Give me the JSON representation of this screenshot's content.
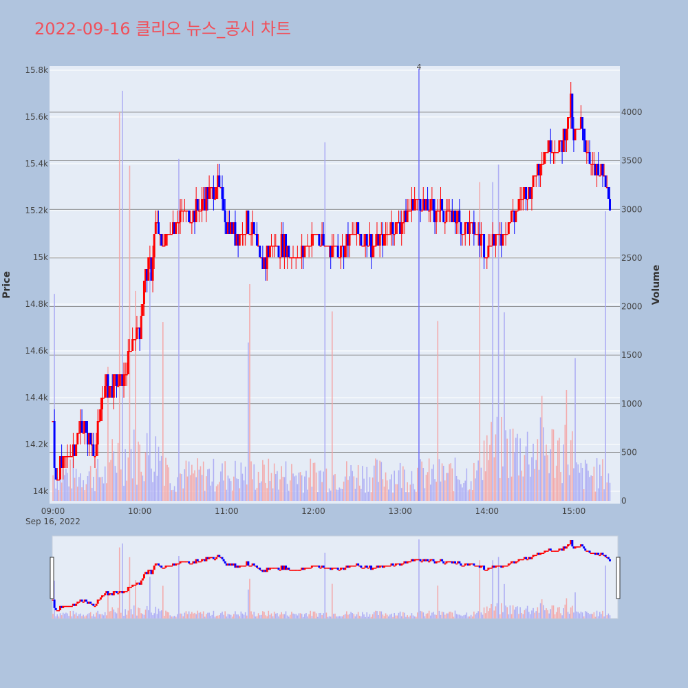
{
  "chart_data": {
    "type": "candlestick",
    "title": "2022-09-16 클리오 뉴스_공시 차트",
    "xlabel": "",
    "ylabel": "Price",
    "y2label": "Volume",
    "date_label": "Sep 16, 2022",
    "x_ticks": [
      "09:00",
      "10:00",
      "11:00",
      "12:00",
      "13:00",
      "14:00",
      "15:00"
    ],
    "y_ticks": [
      "14k",
      "14.2k",
      "14.4k",
      "14.6k",
      "14.8k",
      "15k",
      "15.2k",
      "15.4k",
      "15.6k",
      "15.8k"
    ],
    "y_tick_values": [
      14000,
      14200,
      14400,
      14600,
      14800,
      15000,
      15200,
      15400,
      15600,
      15800
    ],
    "y2_ticks": [
      "0",
      "500",
      "1000",
      "1500",
      "2000",
      "2500",
      "3000",
      "3500",
      "4000"
    ],
    "y2_tick_values": [
      0,
      500,
      1000,
      1500,
      2000,
      2500,
      3000,
      3500,
      4000
    ],
    "price_ylim": [
      13950,
      15800
    ],
    "volume_ylim": [
      0,
      4450
    ],
    "x_range": [
      "09:00",
      "15:30"
    ],
    "up_color": "#ff0000",
    "down_color": "#0000ff",
    "grid": true,
    "news_marker": {
      "time": "13:13",
      "label": "4"
    },
    "price_path": [
      [
        "09:00",
        14300
      ],
      [
        "09:01",
        14100
      ],
      [
        "09:03",
        14050
      ],
      [
        "09:05",
        14100
      ],
      [
        "09:10",
        14150
      ],
      [
        "09:15",
        14200
      ],
      [
        "09:20",
        14300
      ],
      [
        "09:25",
        14200
      ],
      [
        "09:30",
        14200
      ],
      [
        "09:35",
        14450
      ],
      [
        "09:40",
        14450
      ],
      [
        "09:45",
        14450
      ],
      [
        "09:50",
        14500
      ],
      [
        "09:55",
        14650
      ],
      [
        "10:00",
        14700
      ],
      [
        "10:03",
        14900
      ],
      [
        "10:06",
        14950
      ],
      [
        "10:08",
        14950
      ],
      [
        "10:11",
        15150
      ],
      [
        "10:15",
        15050
      ],
      [
        "10:20",
        15100
      ],
      [
        "10:30",
        15200
      ],
      [
        "10:40",
        15200
      ],
      [
        "10:50",
        15300
      ],
      [
        "10:55",
        15300
      ],
      [
        "11:00",
        15150
      ],
      [
        "11:05",
        15100
      ],
      [
        "11:10",
        15100
      ],
      [
        "11:15",
        15150
      ],
      [
        "11:20",
        15050
      ],
      [
        "11:25",
        14950
      ],
      [
        "11:30",
        15050
      ],
      [
        "11:40",
        15050
      ],
      [
        "11:50",
        15000
      ],
      [
        "12:00",
        15100
      ],
      [
        "12:10",
        15050
      ],
      [
        "12:20",
        15050
      ],
      [
        "12:30",
        15100
      ],
      [
        "12:40",
        15050
      ],
      [
        "12:50",
        15100
      ],
      [
        "13:00",
        15150
      ],
      [
        "13:10",
        15250
      ],
      [
        "13:20",
        15200
      ],
      [
        "13:30",
        15200
      ],
      [
        "13:40",
        15150
      ],
      [
        "13:50",
        15100
      ],
      [
        "14:00",
        15050
      ],
      [
        "14:10",
        15100
      ],
      [
        "14:20",
        15200
      ],
      [
        "14:30",
        15300
      ],
      [
        "14:40",
        15450
      ],
      [
        "14:45",
        15500
      ],
      [
        "14:50",
        15450
      ],
      [
        "14:55",
        15550
      ],
      [
        "14:58",
        15650
      ],
      [
        "15:00",
        15500
      ],
      [
        "15:05",
        15550
      ],
      [
        "15:10",
        15450
      ],
      [
        "15:15",
        15350
      ],
      [
        "15:20",
        15350
      ],
      [
        "15:25",
        15250
      ],
      [
        "15:28",
        15250
      ],
      [
        "15:30",
        15150
      ]
    ],
    "volume_spikes": [
      {
        "time": "09:01",
        "value": 2130,
        "dir": "down"
      },
      {
        "time": "09:38",
        "value": 1380,
        "dir": "up"
      },
      {
        "time": "09:46",
        "value": 4000,
        "dir": "up"
      },
      {
        "time": "09:48",
        "value": 4220,
        "dir": "down"
      },
      {
        "time": "09:53",
        "value": 3450,
        "dir": "up"
      },
      {
        "time": "09:57",
        "value": 2160,
        "dir": "up"
      },
      {
        "time": "10:07",
        "value": 2350,
        "dir": "down"
      },
      {
        "time": "10:16",
        "value": 1840,
        "dir": "up"
      },
      {
        "time": "10:27",
        "value": 3520,
        "dir": "down"
      },
      {
        "time": "11:15",
        "value": 1630,
        "dir": "down"
      },
      {
        "time": "11:16",
        "value": 2230,
        "dir": "up"
      },
      {
        "time": "12:08",
        "value": 3690,
        "dir": "down"
      },
      {
        "time": "12:13",
        "value": 1950,
        "dir": "up"
      },
      {
        "time": "13:13",
        "value": 4450,
        "dir": "down"
      },
      {
        "time": "13:26",
        "value": 1850,
        "dir": "up"
      },
      {
        "time": "13:55",
        "value": 3280,
        "dir": "up"
      },
      {
        "time": "14:04",
        "value": 3280,
        "dir": "down"
      },
      {
        "time": "14:08",
        "value": 3460,
        "dir": "down"
      },
      {
        "time": "14:12",
        "value": 1940,
        "dir": "down"
      },
      {
        "time": "14:38",
        "value": 1080,
        "dir": "up"
      },
      {
        "time": "14:55",
        "value": 1140,
        "dir": "up"
      },
      {
        "time": "15:01",
        "value": 1470,
        "dir": "down"
      },
      {
        "time": "15:22",
        "value": 2980,
        "dir": "down"
      }
    ]
  }
}
